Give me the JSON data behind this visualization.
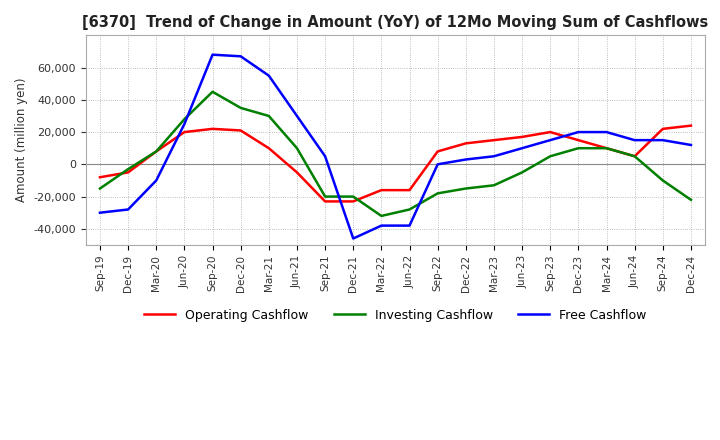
{
  "title": "[6370]  Trend of Change in Amount (YoY) of 12Mo Moving Sum of Cashflows",
  "ylabel": "Amount (million yen)",
  "ylim": [
    -50000,
    80000
  ],
  "yticks": [
    -40000,
    -20000,
    0,
    20000,
    40000,
    60000
  ],
  "legend": [
    "Operating Cashflow",
    "Investing Cashflow",
    "Free Cashflow"
  ],
  "colors": [
    "red",
    "green",
    "blue"
  ],
  "x_labels": [
    "Sep-19",
    "Dec-19",
    "Mar-20",
    "Jun-20",
    "Sep-20",
    "Dec-20",
    "Mar-21",
    "Jun-21",
    "Sep-21",
    "Dec-21",
    "Mar-22",
    "Jun-22",
    "Sep-22",
    "Dec-22",
    "Mar-23",
    "Jun-23",
    "Sep-23",
    "Dec-23",
    "Mar-24",
    "Jun-24",
    "Sep-24",
    "Dec-24"
  ],
  "operating": [
    -8000,
    -5000,
    8000,
    20000,
    22000,
    21000,
    10000,
    -5000,
    -23000,
    -23000,
    -16000,
    -16000,
    8000,
    13000,
    15000,
    17000,
    20000,
    15000,
    10000,
    5000,
    22000,
    24000
  ],
  "investing": [
    -15000,
    -3000,
    8000,
    28000,
    45000,
    35000,
    30000,
    10000,
    -20000,
    -20000,
    -32000,
    -28000,
    -18000,
    -15000,
    -13000,
    -5000,
    5000,
    10000,
    10000,
    5000,
    -10000,
    -22000
  ],
  "free": [
    -30000,
    -28000,
    -10000,
    25000,
    68000,
    67000,
    55000,
    30000,
    5000,
    -46000,
    -38000,
    -38000,
    0,
    3000,
    5000,
    10000,
    15000,
    20000,
    20000,
    15000,
    15000,
    12000
  ]
}
